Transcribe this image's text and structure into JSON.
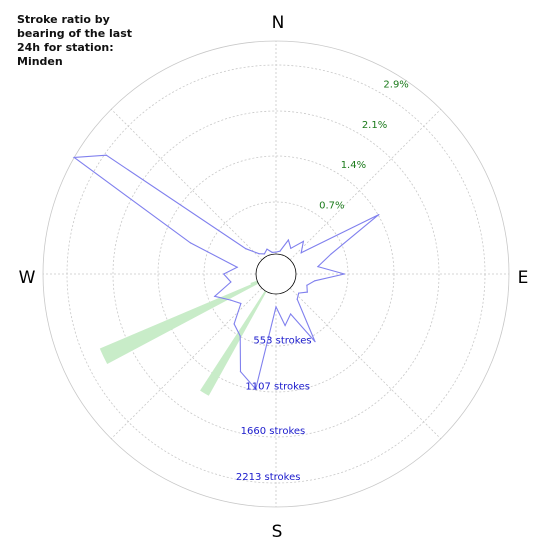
{
  "title": "Stroke ratio by bearing of the last 24h for station: Minden",
  "compass": {
    "north": "N",
    "east": "E",
    "south": "S",
    "west": "W"
  },
  "colors": {
    "ratio_line": "#8080ee",
    "stroke_fill": "#c8ecc8",
    "ratio_labels": "#1a7a1a",
    "stroke_labels": "#1a1acc",
    "grid": "#c8c8c8"
  },
  "chart_data": {
    "type": "polar",
    "title": "Stroke ratio by bearing of the last 24h for station: Minden",
    "ratio_ticks": [
      "0.7%",
      "1.4%",
      "2.1%",
      "2.9%"
    ],
    "ratio_tick_values": [
      0.7,
      1.4,
      2.1,
      2.9
    ],
    "stroke_ticks": [
      "553 strokes",
      "1107 strokes",
      "1660 strokes",
      "2213 strokes"
    ],
    "stroke_tick_values": [
      553,
      1107,
      1660,
      2213
    ],
    "grid": true,
    "series": [
      {
        "kind": "ratio_line",
        "unit": "%",
        "points": [
          {
            "bearing": 0,
            "value": 0.03
          },
          {
            "bearing": 10,
            "value": 0.05
          },
          {
            "bearing": 20,
            "value": 0.25
          },
          {
            "bearing": 30,
            "value": 0.15
          },
          {
            "bearing": 40,
            "value": 0.35
          },
          {
            "bearing": 50,
            "value": 0.2
          },
          {
            "bearing": 60,
            "value": 1.53
          },
          {
            "bearing": 70,
            "value": 0.6
          },
          {
            "bearing": 80,
            "value": 0.35
          },
          {
            "bearing": 90,
            "value": 0.75
          },
          {
            "bearing": 100,
            "value": 0.3
          },
          {
            "bearing": 110,
            "value": 0.2
          },
          {
            "bearing": 120,
            "value": 0.25
          },
          {
            "bearing": 130,
            "value": 0.15
          },
          {
            "bearing": 140,
            "value": 0.2
          },
          {
            "bearing": 150,
            "value": 0.9
          },
          {
            "bearing": 160,
            "value": 0.35
          },
          {
            "bearing": 170,
            "value": 0.5
          },
          {
            "bearing": 180,
            "value": 0.2
          },
          {
            "bearing": 190,
            "value": 1.5
          },
          {
            "bearing": 200,
            "value": 1.3
          },
          {
            "bearing": 210,
            "value": 0.8
          },
          {
            "bearing": 220,
            "value": 0.7
          },
          {
            "bearing": 230,
            "value": 0.4
          },
          {
            "bearing": 240,
            "value": 0.5
          },
          {
            "bearing": 250,
            "value": 0.7
          },
          {
            "bearing": 260,
            "value": 0.4
          },
          {
            "bearing": 270,
            "value": 0.5
          },
          {
            "bearing": 280,
            "value": 0.3
          },
          {
            "bearing": 290,
            "value": 1.1
          },
          {
            "bearing": 300,
            "value": 3.3
          },
          {
            "bearing": 305,
            "value": 2.9
          },
          {
            "bearing": 310,
            "value": 0.3
          },
          {
            "bearing": 320,
            "value": 0.1
          },
          {
            "bearing": 330,
            "value": 0.05
          },
          {
            "bearing": 340,
            "value": 0.1
          },
          {
            "bearing": 350,
            "value": 0.03
          }
        ]
      },
      {
        "kind": "stroke_wedges",
        "unit": "strokes",
        "wedges": [
          {
            "bearing_from": 242,
            "bearing_to": 247,
            "value": 2000
          },
          {
            "bearing_from": 209,
            "bearing_to": 213,
            "value": 1390
          },
          {
            "bearing_from": 247,
            "bearing_to": 250,
            "value": 80
          }
        ]
      }
    ]
  }
}
